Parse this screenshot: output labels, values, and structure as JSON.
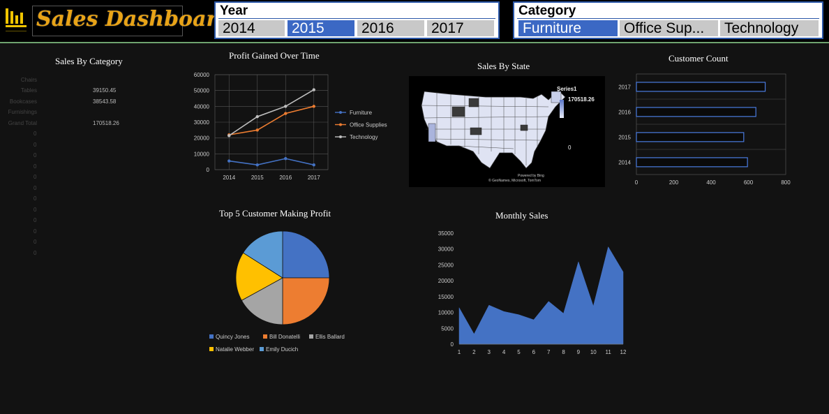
{
  "app": {
    "title": "Sales Dashboard"
  },
  "year_slicer": {
    "caption": "Year",
    "items": [
      "2014",
      "2015",
      "2016",
      "2017"
    ],
    "selected": "2015"
  },
  "category_slicer": {
    "caption": "Category",
    "items": [
      "Furniture",
      "Office Sup...",
      "Technology"
    ],
    "selected": "Furniture"
  },
  "sales_by_category": {
    "title": "Sales By Category",
    "rows": [
      {
        "label": "Chairs",
        "value": ""
      },
      {
        "label": "Tables",
        "value": "39150.45"
      },
      {
        "label": "Bookcases",
        "value": "38543.58"
      },
      {
        "label": "Furnishings",
        "value": ""
      },
      {
        "label": "Grand Total",
        "value": "170518.26"
      }
    ],
    "zeros": [
      "0",
      "0",
      "0",
      "0",
      "0",
      "0",
      "0",
      "0",
      "0",
      "0",
      "0",
      "0"
    ]
  },
  "sales_by_state": {
    "title": "Sales By State",
    "legend_series": "Series1",
    "legend_max": "170518.26",
    "legend_min": "0",
    "credit_line1": "Powered by Bing",
    "credit_line2": "© GeoNames, Microsoft, TomTom"
  },
  "colors": {
    "furniture": "#4472c4",
    "office": "#ed7d31",
    "technology": "#bfbfbf",
    "accent": "#3b68c4",
    "title": "#e8a317"
  },
  "chart_data": [
    {
      "id": "profit",
      "type": "line",
      "title": "Profit Gained Over Time",
      "categories": [
        "2014",
        "2015",
        "2016",
        "2017"
      ],
      "series": [
        {
          "name": "Furniture",
          "values": [
            5500,
            3000,
            7000,
            3000
          ]
        },
        {
          "name": "Office Supplies",
          "values": [
            22000,
            25000,
            35500,
            40000
          ]
        },
        {
          "name": "Technology",
          "values": [
            21500,
            33500,
            40000,
            50500
          ]
        }
      ],
      "ylim": [
        0,
        60000
      ],
      "yticks": [
        "0",
        "10000",
        "20000",
        "30000",
        "40000",
        "50000",
        "60000"
      ],
      "legend": "right",
      "grid": true
    },
    {
      "id": "customers",
      "type": "bar",
      "title": "Customer Count",
      "orientation": "horizontal",
      "categories": [
        "2014",
        "2015",
        "2016",
        "2017"
      ],
      "values": [
        595,
        575,
        640,
        690
      ],
      "xlim": [
        0,
        800
      ],
      "xticks": [
        "0",
        "200",
        "400",
        "600",
        "800"
      ],
      "grid": true
    },
    {
      "id": "top5",
      "type": "pie",
      "title": "Top 5 Customer Making Profit",
      "labels": [
        "Quincy Jones",
        "Bill Donatelli",
        "Ellis Ballard",
        "Natalie Webber",
        "Emily Ducich"
      ],
      "values": [
        25,
        25,
        17,
        17,
        16
      ],
      "legend": "bottom"
    },
    {
      "id": "monthly",
      "type": "area",
      "title": "Monthly Sales",
      "x": [
        "1",
        "2",
        "3",
        "4",
        "5",
        "6",
        "7",
        "8",
        "9",
        "10",
        "11",
        "12"
      ],
      "values": [
        11500,
        3200,
        12300,
        10300,
        9300,
        7700,
        13500,
        9700,
        26000,
        12000,
        30700,
        22800
      ],
      "ylim": [
        0,
        35000
      ],
      "yticks": [
        "0",
        "5000",
        "10000",
        "15000",
        "20000",
        "25000",
        "30000",
        "35000"
      ],
      "grid": false
    }
  ]
}
